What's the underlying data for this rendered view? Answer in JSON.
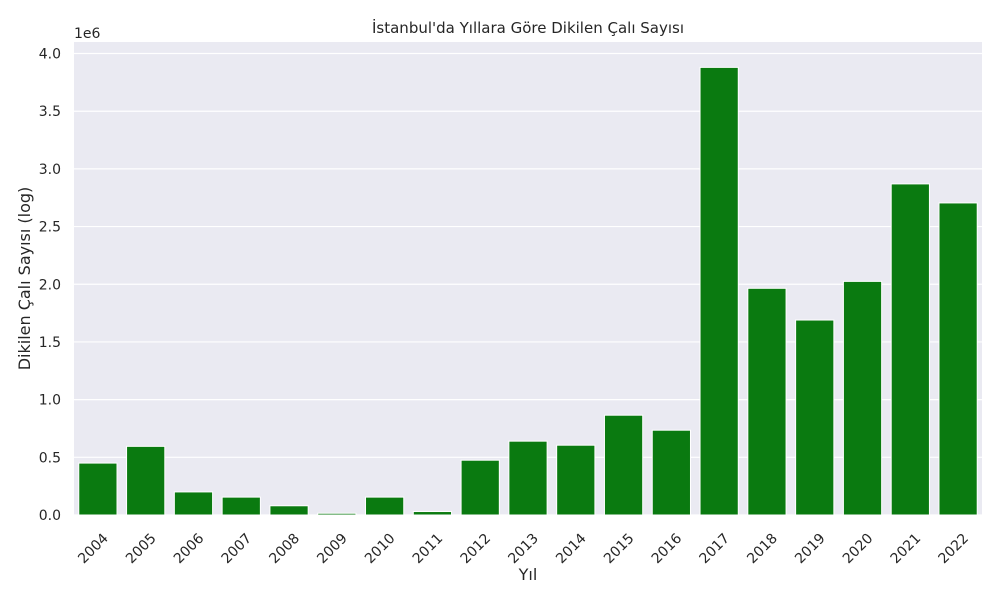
{
  "chart_data": {
    "type": "bar",
    "title": "İstanbul'da Yıllara Göre Dikilen Çalı Sayısı",
    "xlabel": "Yıl",
    "ylabel": "Dikilen Çalı Sayısı (log)",
    "offset_label": "1e6",
    "categories": [
      "2004",
      "2005",
      "2006",
      "2007",
      "2008",
      "2009",
      "2010",
      "2011",
      "2012",
      "2013",
      "2014",
      "2015",
      "2016",
      "2017",
      "2018",
      "2019",
      "2020",
      "2021",
      "2022"
    ],
    "values": [
      450000,
      595000,
      200000,
      155000,
      80000,
      15000,
      155000,
      30000,
      475000,
      640000,
      605000,
      865000,
      735000,
      3880000,
      1965000,
      1690000,
      2025000,
      2870000,
      2705000
    ],
    "yticks": [
      0.0,
      0.5,
      1.0,
      1.5,
      2.0,
      2.5,
      3.0,
      3.5,
      4.0
    ],
    "ytick_labels": [
      "0.0",
      "0.5",
      "1.0",
      "1.5",
      "2.0",
      "2.5",
      "3.0",
      "3.5",
      "4.0"
    ],
    "ylim": [
      0,
      4.1
    ],
    "grid": true,
    "bar_color": "#0a7a10",
    "background_color": "#eaeaf2",
    "grid_color": "#ffffff"
  }
}
